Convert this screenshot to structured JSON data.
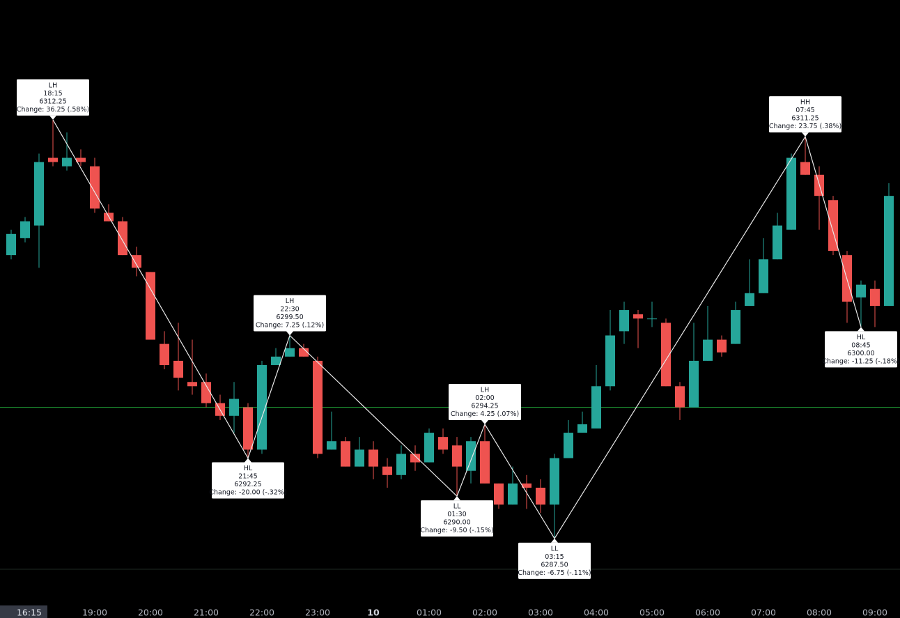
{
  "chart_data": {
    "type": "candlestick",
    "categories": [
      "17:30",
      "17:45",
      "18:00",
      "18:15",
      "18:30",
      "18:45",
      "19:00",
      "19:15",
      "19:30",
      "19:45",
      "20:00",
      "20:15",
      "20:30",
      "20:45",
      "21:00",
      "21:15",
      "21:30",
      "21:45",
      "22:00",
      "22:15",
      "22:30",
      "22:45",
      "23:00",
      "23:15",
      "23:30",
      "23:45",
      "00:00",
      "00:15",
      "00:30",
      "00:45",
      "01:00",
      "01:15",
      "01:30",
      "01:45",
      "02:00",
      "02:15",
      "02:30",
      "02:45",
      "03:00",
      "03:15",
      "03:30",
      "03:45",
      "04:00",
      "04:15",
      "04:30",
      "04:45",
      "05:00",
      "05:15",
      "05:30",
      "05:45",
      "06:00",
      "06:15",
      "06:30",
      "06:45",
      "07:00",
      "07:15",
      "07:30",
      "07:45",
      "08:00",
      "08:15",
      "08:30",
      "08:45",
      "09:00",
      "09:15"
    ],
    "open": [
      6304.25,
      6305.25,
      6306.0,
      6310.0,
      6309.5,
      6310.0,
      6309.5,
      6306.75,
      6306.25,
      6304.25,
      6303.25,
      6299.0,
      6298.0,
      6296.75,
      6296.75,
      6295.5,
      6294.75,
      6295.25,
      6292.75,
      6297.75,
      6298.25,
      6298.75,
      6298.0,
      6292.75,
      6293.25,
      6291.75,
      6292.75,
      6291.75,
      6291.25,
      6292.5,
      6292.0,
      6293.5,
      6293.0,
      6291.5,
      6293.25,
      6290.75,
      6289.5,
      6290.75,
      6290.5,
      6289.5,
      6292.25,
      6293.75,
      6294.0,
      6296.5,
      6299.75,
      6300.75,
      6300.5,
      6300.25,
      6296.5,
      6295.25,
      6298.0,
      6299.25,
      6299.0,
      6301.25,
      6302.0,
      6304.0,
      6305.75,
      6309.75,
      6309.0,
      6307.5,
      6304.25,
      6301.75,
      6302.25,
      6301.25
    ],
    "high": [
      6305.75,
      6306.5,
      6310.25,
      6312.25,
      6311.5,
      6310.5,
      6310.0,
      6307.25,
      6306.5,
      6304.75,
      6303.25,
      6299.75,
      6300.25,
      6299.25,
      6297.25,
      6296.0,
      6296.75,
      6295.5,
      6298.0,
      6298.75,
      6299.5,
      6299.0,
      6298.25,
      6295.0,
      6293.5,
      6293.5,
      6293.25,
      6292.25,
      6293.0,
      6293.0,
      6294.0,
      6294.0,
      6293.5,
      6293.5,
      6294.25,
      6290.75,
      6291.75,
      6291.25,
      6291.0,
      6292.5,
      6294.5,
      6295.0,
      6297.75,
      6301.0,
      6301.5,
      6301.0,
      6301.5,
      6300.5,
      6296.75,
      6300.25,
      6301.25,
      6299.5,
      6301.5,
      6304.0,
      6305.25,
      6306.75,
      6310.25,
      6311.25,
      6309.5,
      6307.75,
      6304.5,
      6302.75,
      6302.75,
      6308.5
    ],
    "low": [
      6304.0,
      6305.0,
      6303.5,
      6309.5,
      6309.25,
      6309.5,
      6306.75,
      6306.25,
      6304.25,
      6303.0,
      6299.25,
      6297.5,
      6296.25,
      6296.0,
      6295.25,
      6294.5,
      6293.75,
      6292.25,
      6292.5,
      6297.75,
      6298.25,
      6298.25,
      6292.25,
      6292.75,
      6291.75,
      6291.75,
      6291.0,
      6290.5,
      6291.0,
      6291.5,
      6292.0,
      6292.5,
      6290.0,
      6290.75,
      6290.75,
      6289.25,
      6289.5,
      6289.25,
      6289.0,
      6287.5,
      6292.25,
      6293.75,
      6294.0,
      6296.25,
      6299.0,
      6298.75,
      6300.0,
      6296.5,
      6294.5,
      6295.25,
      6298.0,
      6298.25,
      6299.0,
      6301.25,
      6302.0,
      6304.0,
      6305.75,
      6309.0,
      6305.75,
      6304.25,
      6300.25,
      6300.0,
      6300.0,
      6301.25
    ],
    "close": [
      6305.5,
      6306.25,
      6309.75,
      6309.75,
      6310.0,
      6309.75,
      6307.0,
      6306.25,
      6304.25,
      6303.5,
      6299.25,
      6297.75,
      6297.0,
      6296.5,
      6295.5,
      6294.75,
      6295.75,
      6292.75,
      6297.75,
      6298.25,
      6298.75,
      6298.25,
      6292.5,
      6293.25,
      6291.75,
      6292.75,
      6291.75,
      6291.25,
      6292.5,
      6292.0,
      6293.75,
      6292.75,
      6291.75,
      6293.25,
      6290.75,
      6289.5,
      6290.75,
      6290.5,
      6289.5,
      6292.25,
      6293.75,
      6294.25,
      6296.5,
      6299.5,
      6301.0,
      6300.5,
      6300.5,
      6296.5,
      6295.25,
      6298.0,
      6299.25,
      6298.5,
      6301.0,
      6302.0,
      6304.0,
      6306.0,
      6310.0,
      6309.0,
      6307.75,
      6304.5,
      6301.5,
      6302.5,
      6301.25,
      6307.75
    ],
    "up_color": "#26a69a",
    "down_color": "#ef5350",
    "ylim": [
      6283.91,
      6319.33
    ],
    "xticks": [
      "19:00",
      "20:00",
      "21:00",
      "22:00",
      "23:00",
      {
        "value": "00:00",
        "label": "10"
      },
      "01:00",
      "02:00",
      "03:00",
      "04:00",
      "05:00",
      "06:00",
      "07:00",
      "08:00",
      "09:00"
    ],
    "crosshair_label": "16:15",
    "reference_line": {
      "value": 6295.25,
      "color": "#22a83a"
    },
    "annotations": [
      {
        "label": "LH",
        "time": "18:15",
        "price": {
          "value": 6312.25,
          "label": "6312.25"
        },
        "change": "Change: 36.25 (.58%)"
      },
      {
        "label": "HL",
        "time": "21:45",
        "price": {
          "value": 6292.25,
          "label": "6292.25"
        },
        "change": "Change: -20.00 (-.32%)"
      },
      {
        "label": "LH",
        "time": "22:30",
        "price": {
          "value": 6299.5,
          "label": "6299.50"
        },
        "change": "Change: 7.25 (.12%)"
      },
      {
        "label": "LL",
        "time": "01:30",
        "price": {
          "value": 6290,
          "label": "6290.00"
        },
        "change": "Change: -9.50 (-.15%)"
      },
      {
        "label": "LH",
        "time": "02:00",
        "price": {
          "value": 6294.25,
          "label": "6294.25"
        },
        "change": "Change: 4.25 (.07%)"
      },
      {
        "label": "LL",
        "time": "03:15",
        "price": {
          "value": 6287.5,
          "label": "6287.50"
        },
        "change": "Change: -6.75 (-.11%)"
      },
      {
        "label": "HH",
        "time": "07:45",
        "price": {
          "value": 6311.25,
          "label": "6311.25"
        },
        "change": "Change: 23.75 (.38%)"
      },
      {
        "label": "HL",
        "time": "08:45",
        "price": {
          "value": 6300,
          "label": "6300.00"
        },
        "change": "Change: -11.25 (-.18%)"
      }
    ]
  }
}
